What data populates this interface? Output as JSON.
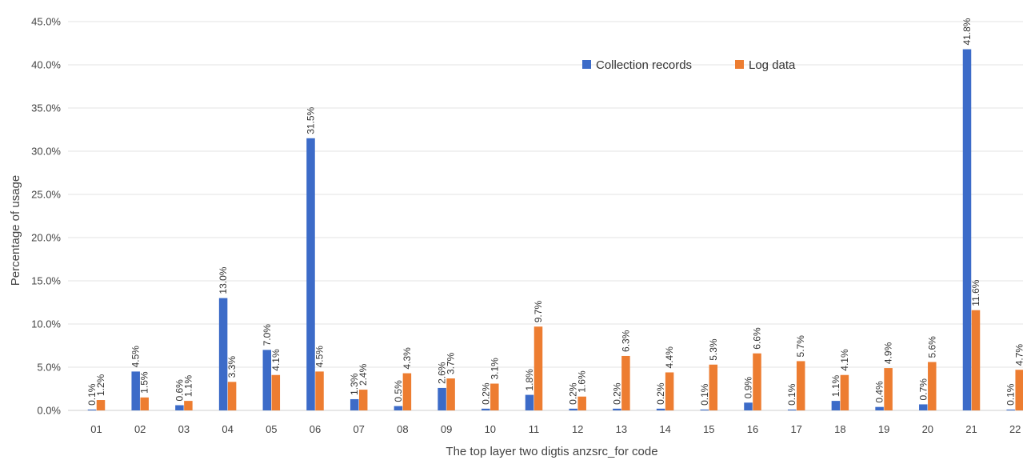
{
  "colors": {
    "collection": "#3c6bc8",
    "log": "#ed7d31"
  },
  "chart_data": {
    "type": "bar",
    "title": "",
    "xlabel": "The top layer two digtis anzsrc_for code",
    "ylabel": "Percentage of usage",
    "ylim": [
      0,
      45
    ],
    "yticks": [
      "0.0%",
      "5.0%",
      "10.0%",
      "15.0%",
      "20.0%",
      "25.0%",
      "30.0%",
      "35.0%",
      "40.0%",
      "45.0%"
    ],
    "grid": true,
    "legend_position": "top-right",
    "categories": [
      "01",
      "02",
      "03",
      "04",
      "05",
      "06",
      "07",
      "08",
      "09",
      "10",
      "11",
      "12",
      "13",
      "14",
      "15",
      "16",
      "17",
      "18",
      "19",
      "20",
      "21",
      "22"
    ],
    "series": [
      {
        "name": "Collection records",
        "values": [
          0.1,
          4.5,
          0.6,
          13.0,
          7.0,
          31.5,
          1.3,
          0.5,
          2.6,
          0.2,
          1.8,
          0.2,
          0.2,
          0.2,
          0.1,
          0.9,
          0.1,
          1.1,
          0.4,
          0.7,
          41.8,
          0.1
        ],
        "labels": [
          "0.1%",
          "4.5%",
          "0.6%",
          "13.0%",
          "7.0%",
          "31.5%",
          "1.3%",
          "0.5%",
          "2.6%",
          "0.2%",
          "1.8%",
          "0.2%",
          "0.2%",
          "0.2%",
          "0.1%",
          "0.9%",
          "0.1%",
          "1.1%",
          "0.4%",
          "0.7%",
          "41.8%",
          "0.1%"
        ]
      },
      {
        "name": "Log data",
        "values": [
          1.2,
          1.5,
          1.1,
          3.3,
          4.1,
          4.5,
          2.4,
          4.3,
          3.7,
          3.1,
          9.7,
          1.6,
          6.3,
          4.4,
          5.3,
          6.6,
          5.7,
          4.1,
          4.9,
          5.6,
          11.6,
          4.7
        ],
        "labels": [
          "1.2%",
          "1.5%",
          "1.1%",
          "3.3%",
          "4.1%",
          "4.5%",
          "2.4%",
          "4.3%",
          "3.7%",
          "3.1%",
          "9.7%",
          "1.6%",
          "6.3%",
          "4.4%",
          "5.3%",
          "6.6%",
          "5.7%",
          "4.1%",
          "4.9%",
          "5.6%",
          "11.6%",
          "4.7%"
        ]
      }
    ]
  }
}
